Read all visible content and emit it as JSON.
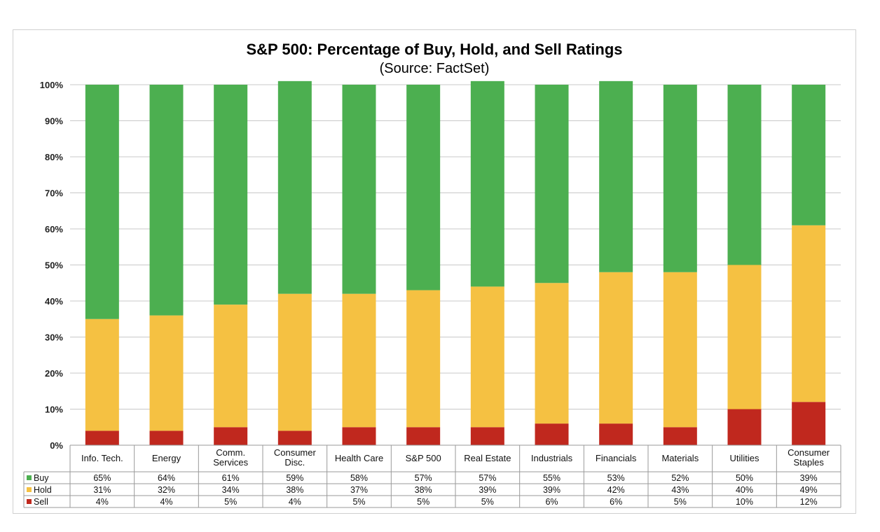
{
  "chart_data": {
    "type": "bar",
    "stacked": true,
    "title": "S&P 500: Percentage of Buy, Hold, and Sell Ratings",
    "subtitle": "(Source: FactSet)",
    "categories": [
      [
        "Info. Tech."
      ],
      [
        "Energy"
      ],
      [
        "Comm.",
        "Services"
      ],
      [
        "Consumer",
        "Disc."
      ],
      [
        "Health Care"
      ],
      [
        "S&P 500"
      ],
      [
        "Real Estate"
      ],
      [
        "Industrials"
      ],
      [
        "Financials"
      ],
      [
        "Materials"
      ],
      [
        "Utilities"
      ],
      [
        "Consumer",
        "Staples"
      ]
    ],
    "series": [
      {
        "name": "Sell",
        "color": "#c0281e",
        "values": [
          4,
          4,
          5,
          4,
          5,
          5,
          5,
          6,
          6,
          5,
          10,
          12
        ]
      },
      {
        "name": "Hold",
        "color": "#f5c142",
        "values": [
          31,
          32,
          34,
          38,
          37,
          38,
          39,
          39,
          42,
          43,
          40,
          49
        ]
      },
      {
        "name": "Buy",
        "color": "#4caf50",
        "values": [
          65,
          64,
          61,
          59,
          58,
          57,
          57,
          55,
          53,
          52,
          50,
          39
        ]
      }
    ],
    "table_rows": [
      {
        "name": "Buy",
        "color": "#4caf50",
        "labels": [
          "65%",
          "64%",
          "61%",
          "59%",
          "58%",
          "57%",
          "57%",
          "55%",
          "53%",
          "52%",
          "50%",
          "39%"
        ]
      },
      {
        "name": "Hold",
        "color": "#f5c142",
        "labels": [
          "31%",
          "32%",
          "34%",
          "38%",
          "37%",
          "38%",
          "39%",
          "39%",
          "42%",
          "43%",
          "40%",
          "49%"
        ]
      },
      {
        "name": "Sell",
        "color": "#c0281e",
        "labels": [
          "4%",
          "4%",
          "5%",
          "4%",
          "5%",
          "5%",
          "5%",
          "6%",
          "6%",
          "5%",
          "10%",
          "12%"
        ]
      }
    ],
    "ylim": [
      0,
      100
    ],
    "yticks": [
      "0%",
      "10%",
      "20%",
      "30%",
      "40%",
      "50%",
      "60%",
      "70%",
      "80%",
      "90%",
      "100%"
    ],
    "grid": true,
    "legend": "data-table"
  }
}
